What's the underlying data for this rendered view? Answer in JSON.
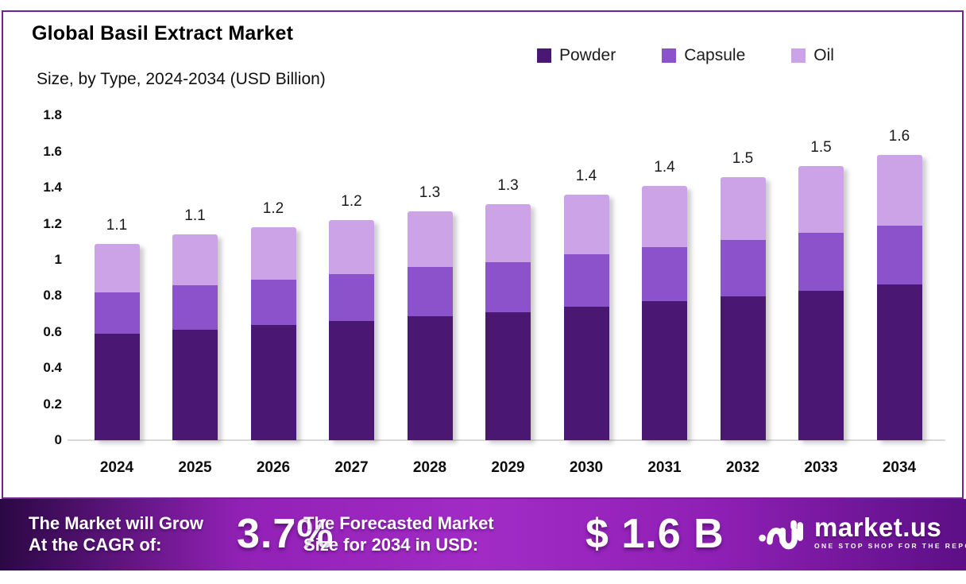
{
  "title": "Global Basil Extract Market",
  "subtitle": "Size, by Type, 2024-2034 (USD Billion)",
  "legend": {
    "items": [
      {
        "label": "Powder",
        "color": "#4A1772"
      },
      {
        "label": "Capsule",
        "color": "#8C52CC"
      },
      {
        "label": "Oil",
        "color": "#CBA3E6"
      }
    ]
  },
  "chart_data": {
    "type": "bar",
    "stacked": true,
    "title": "Global Basil Extract Market Size, by Type, 2024-2034 (USD Billion)",
    "categories": [
      "2024",
      "2025",
      "2026",
      "2027",
      "2028",
      "2029",
      "2030",
      "2031",
      "2032",
      "2033",
      "2034"
    ],
    "series": [
      {
        "name": "Powder",
        "color": "#4A1772",
        "values": [
          0.59,
          0.61,
          0.64,
          0.66,
          0.69,
          0.71,
          0.74,
          0.77,
          0.8,
          0.83,
          0.86
        ]
      },
      {
        "name": "Capsule",
        "color": "#8C52CC",
        "values": [
          0.23,
          0.25,
          0.25,
          0.26,
          0.27,
          0.28,
          0.29,
          0.3,
          0.31,
          0.32,
          0.33
        ]
      },
      {
        "name": "Oil",
        "color": "#CBA3E6",
        "values": [
          0.27,
          0.28,
          0.29,
          0.3,
          0.31,
          0.32,
          0.33,
          0.34,
          0.35,
          0.37,
          0.39
        ]
      }
    ],
    "totals_labels": [
      "1.1",
      "1.1",
      "1.2",
      "1.2",
      "1.3",
      "1.3",
      "1.4",
      "1.4",
      "1.5",
      "1.5",
      "1.6"
    ],
    "xlabel": "",
    "ylabel": "",
    "ylim": [
      0,
      1.8
    ],
    "yticks": [
      "1.8",
      "1.6",
      "1.4",
      "1.2",
      "1",
      "0.8",
      "0.6",
      "0.4",
      "0.2",
      "0"
    ],
    "grid": false,
    "legend_position": "top-right"
  },
  "banner": {
    "cagr_label_line1": "The Market will Grow",
    "cagr_label_line2": "At the CAGR of:",
    "cagr_value": "3.7%",
    "forecast_label_line1": "The Forecasted Market",
    "forecast_label_line2": "Size for 2034 in USD:",
    "forecast_value": "$ 1.6 B"
  },
  "logo": {
    "name": "market.us",
    "tagline": "ONE STOP SHOP FOR THE REPORTS"
  },
  "colors": {
    "frame_border": "#70258F",
    "axis_line": "#D9D9D9",
    "banner_gradient": [
      "#2B0845",
      "#9221B6",
      "#A22BC6",
      "#8E1FB4",
      "#5C0F86"
    ],
    "label_text": "#1B1B1B"
  }
}
